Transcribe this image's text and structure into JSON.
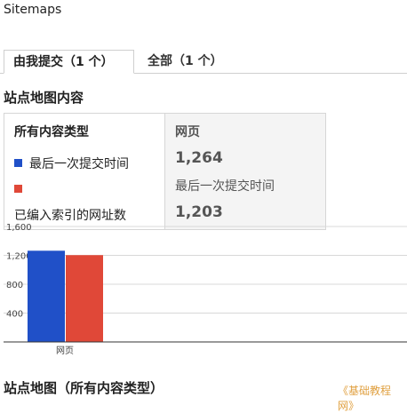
{
  "page": {
    "title": "Sitemaps"
  },
  "tabs": [
    {
      "label": "由我提交（1 个）",
      "selected": true
    },
    {
      "label": "全部（1 个）",
      "selected": false
    }
  ],
  "content": {
    "heading": "站点地图内容"
  },
  "legend": {
    "title": "所有内容类型",
    "submitted_label": "最后一次提交时间",
    "indexed_label": "已编入索引的网址数"
  },
  "column": {
    "title": "网页",
    "submitted_value": "1,264",
    "submitted_label": "最后一次提交时间",
    "indexed_value": "1,203"
  },
  "colors": {
    "submitted": "#2050c8",
    "indexed": "#e04838",
    "accent_text": "#555555"
  },
  "chart_data": {
    "type": "bar",
    "categories": [
      "网页"
    ],
    "series": [
      {
        "name": "最后一次提交时间",
        "values": [
          1264
        ]
      },
      {
        "name": "已编入索引的网址数",
        "values": [
          1203
        ]
      }
    ],
    "y_ticks": [
      "1,600",
      "1,200",
      "800",
      "400"
    ],
    "ylim": [
      0,
      1600
    ],
    "grid": true
  },
  "sitemap_section": {
    "heading": "站点地图（所有内容类型）"
  },
  "watermark": "《基础教程网》"
}
